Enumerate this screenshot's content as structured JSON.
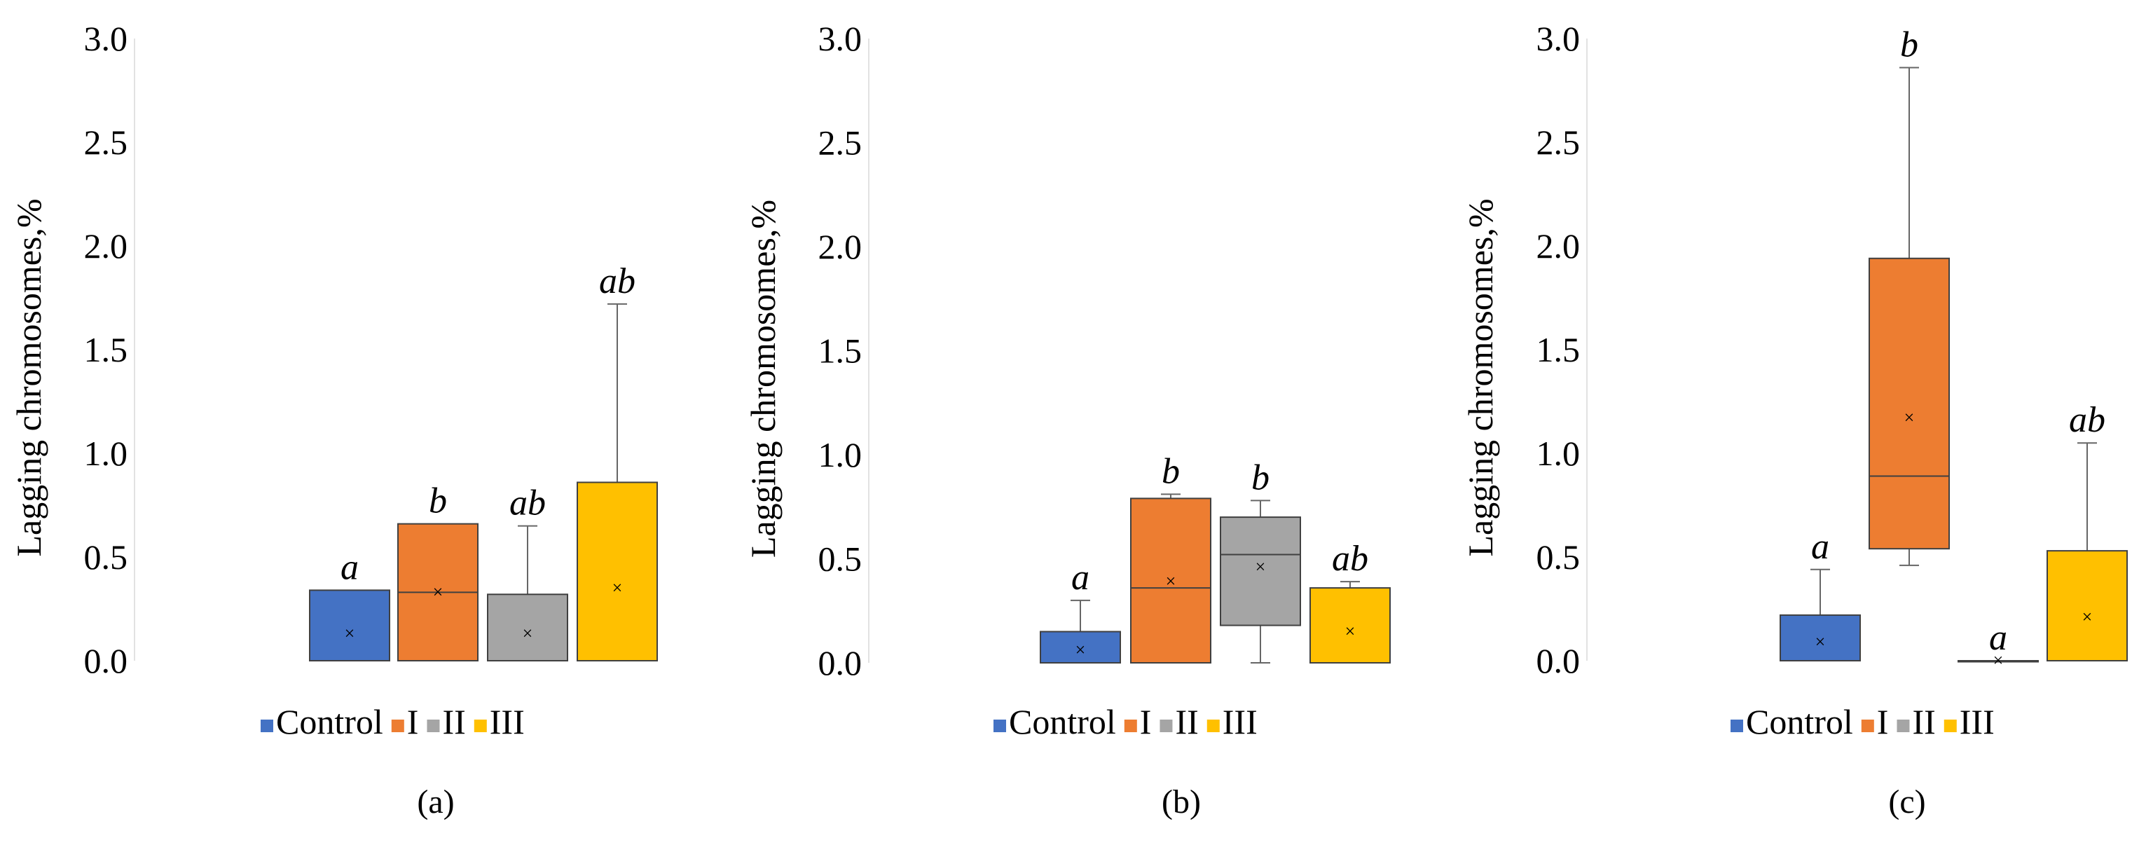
{
  "figure": {
    "legend": [
      {
        "label": "Control",
        "color": "#4472C4"
      },
      {
        "label": "I",
        "color": "#ED7D31"
      },
      {
        "label": "II",
        "color": "#A5A5A5"
      },
      {
        "label": "III",
        "color": "#FFC000"
      }
    ]
  },
  "chart_data": [
    {
      "type": "boxplot",
      "panel_label": "(a)",
      "ylabel": "Lagging chromosomes,%",
      "ylim": [
        0.0,
        3.0
      ],
      "yticks": [
        "0.0",
        "0.5",
        "1.0",
        "1.5",
        "2.0",
        "2.5",
        "3.0"
      ],
      "categories": [
        "Control",
        "I",
        "II",
        "III"
      ],
      "boxes": [
        {
          "name": "Control",
          "q1": 0.0,
          "median": 0.0,
          "q3": 0.34,
          "whisker_low": 0.0,
          "whisker_high": 0.34,
          "mean": 0.13,
          "letter": "a"
        },
        {
          "name": "I",
          "q1": 0.0,
          "median": 0.33,
          "q3": 0.66,
          "whisker_low": 0.0,
          "whisker_high": 0.66,
          "mean": 0.33,
          "letter": "b"
        },
        {
          "name": "II",
          "q1": 0.0,
          "median": 0.0,
          "q3": 0.32,
          "whisker_low": 0.0,
          "whisker_high": 0.65,
          "mean": 0.13,
          "letter": "ab"
        },
        {
          "name": "III",
          "q1": 0.0,
          "median": 0.0,
          "q3": 0.86,
          "whisker_low": 0.0,
          "whisker_high": 1.72,
          "mean": 0.35,
          "letter": "ab"
        }
      ]
    },
    {
      "type": "boxplot",
      "panel_label": "(b)",
      "ylabel": "Lagging chromosomes,%",
      "ylim": [
        0.0,
        3.0
      ],
      "yticks": [
        "0.0",
        "0.5",
        "1.0",
        "1.5",
        "2.0",
        "2.5",
        "3.0"
      ],
      "categories": [
        "Control",
        "I",
        "II",
        "III"
      ],
      "boxes": [
        {
          "name": "Control",
          "q1": 0.0,
          "median": 0.0,
          "q3": 0.15,
          "whisker_low": 0.0,
          "whisker_high": 0.3,
          "mean": 0.06,
          "letter": "a"
        },
        {
          "name": "I",
          "q1": 0.0,
          "median": 0.36,
          "q3": 0.79,
          "whisker_low": 0.0,
          "whisker_high": 0.81,
          "mean": 0.39,
          "letter": "b"
        },
        {
          "name": "II",
          "q1": 0.18,
          "median": 0.52,
          "q3": 0.7,
          "whisker_low": 0.0,
          "whisker_high": 0.78,
          "mean": 0.46,
          "letter": "b"
        },
        {
          "name": "III",
          "q1": 0.0,
          "median": 0.0,
          "q3": 0.36,
          "whisker_low": 0.0,
          "whisker_high": 0.39,
          "mean": 0.15,
          "letter": "ab"
        }
      ]
    },
    {
      "type": "boxplot",
      "panel_label": "(c)",
      "ylabel": "Lagging chromosomes,%",
      "ylim": [
        0.0,
        3.0
      ],
      "yticks": [
        "0.0",
        "0.5",
        "1.0",
        "1.5",
        "2.0",
        "2.5",
        "3.0"
      ],
      "categories": [
        "Control",
        "I",
        "II",
        "III"
      ],
      "boxes": [
        {
          "name": "Control",
          "q1": 0.0,
          "median": 0.0,
          "q3": 0.22,
          "whisker_low": 0.0,
          "whisker_high": 0.44,
          "mean": 0.09,
          "letter": "a"
        },
        {
          "name": "I",
          "q1": 0.54,
          "median": 0.89,
          "q3": 1.94,
          "whisker_low": 0.46,
          "whisker_high": 2.86,
          "mean": 1.17,
          "letter": "b"
        },
        {
          "name": "II",
          "q1": 0.0,
          "median": 0.0,
          "q3": 0.0,
          "whisker_low": 0.0,
          "whisker_high": 0.0,
          "mean": 0.0,
          "letter": "a"
        },
        {
          "name": "III",
          "q1": 0.0,
          "median": 0.0,
          "q3": 0.53,
          "whisker_low": 0.0,
          "whisker_high": 1.05,
          "mean": 0.21,
          "letter": "ab"
        }
      ]
    }
  ]
}
